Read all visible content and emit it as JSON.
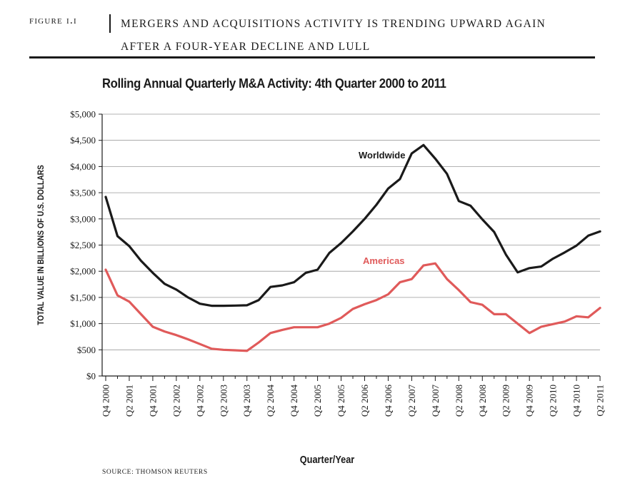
{
  "figure": {
    "label": "FIGURE I.I",
    "title_line1": "MERGERS AND ACQUISITIONS ACTIVITY IS TRENDING UPWARD AGAIN",
    "title_line2": "AFTER A FOUR-YEAR DECLINE AND LULL",
    "source": "SOURCE: THOMSON REUTERS"
  },
  "colors": {
    "worldwide": "#1a1a1a",
    "americas": "#e05a5a",
    "grid": "#9a9a9a"
  },
  "chart_data": {
    "type": "line",
    "title": "Rolling Annual Quarterly M&A Activity: 4th Quarter 2000 to 2011",
    "xlabel": "Quarter/Year",
    "ylabel": "TOTAL VALUE IN BILLIONS OF U.S. DOLLARS",
    "ylim": [
      0,
      5000
    ],
    "grid": true,
    "y_ticks": [
      "$0",
      "$500",
      "$1,000",
      "$1,500",
      "$2,000",
      "$2,500",
      "$3,000",
      "$3,500",
      "$4,000",
      "$4,500",
      "$5,000"
    ],
    "y_tick_values": [
      0,
      500,
      1000,
      1500,
      2000,
      2500,
      3000,
      3500,
      4000,
      4500,
      5000
    ],
    "x_tick_labels": [
      "Q4 2000",
      "Q2 2001",
      "Q4 2001",
      "Q2 2002",
      "Q4 2002",
      "Q2 2003",
      "Q4 2003",
      "Q2 2004",
      "Q4 2004",
      "Q2 2005",
      "Q4 2005",
      "Q2 2006",
      "Q4 2006",
      "Q2 2007",
      "Q4 2007",
      "Q2 2008",
      "Q4 2008",
      "Q2 2009",
      "Q4 2009",
      "Q2 2010",
      "Q4 2010",
      "Q2 2011"
    ],
    "x": [
      "Q4 2000",
      "Q1 2001",
      "Q2 2001",
      "Q3 2001",
      "Q4 2001",
      "Q1 2002",
      "Q2 2002",
      "Q3 2002",
      "Q4 2002",
      "Q1 2003",
      "Q2 2003",
      "Q3 2003",
      "Q4 2003",
      "Q1 2004",
      "Q2 2004",
      "Q3 2004",
      "Q4 2004",
      "Q1 2005",
      "Q2 2005",
      "Q3 2005",
      "Q4 2005",
      "Q1 2006",
      "Q2 2006",
      "Q3 2006",
      "Q4 2006",
      "Q1 2007",
      "Q2 2007",
      "Q3 2007",
      "Q4 2007",
      "Q1 2008",
      "Q2 2008",
      "Q3 2008",
      "Q4 2008",
      "Q1 2009",
      "Q2 2009",
      "Q3 2009",
      "Q4 2009",
      "Q1 2010",
      "Q2 2010",
      "Q3 2010",
      "Q4 2010",
      "Q1 2011",
      "Q2 2011"
    ],
    "series": [
      {
        "name": "Worldwide",
        "values": [
          3420,
          2670,
          2480,
          2200,
          1970,
          1760,
          1650,
          1500,
          1380,
          1340,
          1340,
          1345,
          1350,
          1450,
          1700,
          1730,
          1790,
          1970,
          2030,
          2350,
          2540,
          2760,
          3000,
          3270,
          3580,
          3760,
          4250,
          4410,
          4150,
          3860,
          3340,
          3250,
          2990,
          2750,
          2320,
          1980,
          2060,
          2090,
          2240,
          2360,
          2490,
          2680,
          2760
        ]
      },
      {
        "name": "Americas",
        "values": [
          2030,
          1540,
          1420,
          1180,
          940,
          850,
          780,
          700,
          610,
          520,
          500,
          490,
          480,
          640,
          820,
          880,
          930,
          930,
          930,
          1000,
          1110,
          1280,
          1370,
          1450,
          1560,
          1790,
          1850,
          2110,
          2150,
          1850,
          1640,
          1410,
          1360,
          1180,
          1180,
          1000,
          820,
          940,
          990,
          1040,
          1140,
          1120,
          1300
        ]
      }
    ]
  }
}
